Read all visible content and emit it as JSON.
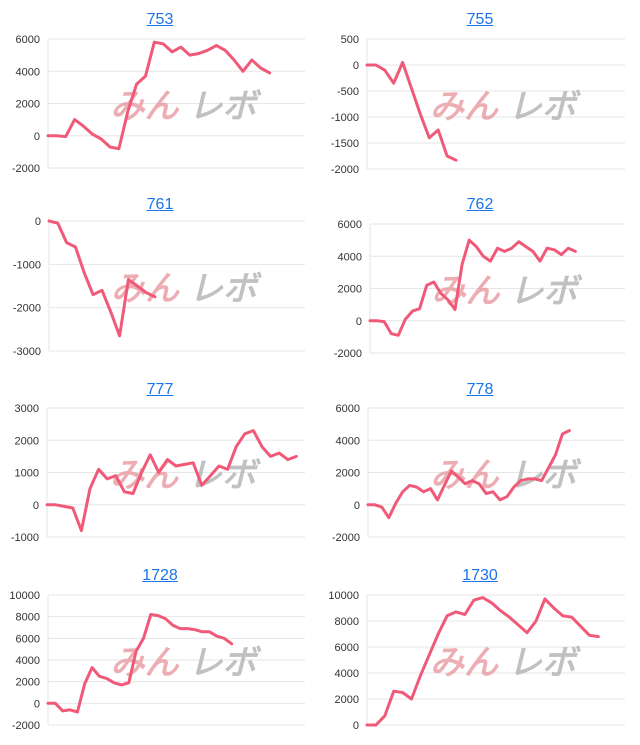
{
  "page": {
    "background": "#ffffff"
  },
  "colors": {
    "line": "#f05a78",
    "grid": "#e6e6e6",
    "link": "#1a73e8",
    "wm_a": "#e89aa0",
    "wm_b": "#b7b7b7"
  },
  "watermark": {
    "text_a": "みん",
    "text_b": "レボ"
  },
  "chart_data": [
    {
      "type": "line",
      "title": "753",
      "ylim": [
        -2000,
        6000
      ],
      "yticks": [
        -2000,
        0,
        2000,
        4000,
        6000
      ],
      "xcount": 30,
      "series": [
        {
          "values": [
            0,
            0,
            -50,
            1000,
            600,
            100,
            -200,
            -700,
            -800,
            1500,
            3200,
            3700,
            5800,
            5700,
            5200,
            5500,
            5000,
            5100,
            5300,
            5600,
            5300,
            4700,
            4000,
            4700,
            4200,
            3900
          ]
        }
      ]
    },
    {
      "type": "line",
      "title": "755",
      "ylim": [
        -2000,
        500
      ],
      "yticks": [
        -2000,
        -1500,
        -1000,
        -500,
        0,
        500
      ],
      "xcount": 30,
      "series": [
        {
          "values": [
            0,
            0,
            -100,
            -350,
            50,
            -450,
            -950,
            -1400,
            -1250,
            -1750,
            -1830
          ]
        }
      ]
    },
    {
      "type": "line",
      "title": "761",
      "ylim": [
        -3000,
        0
      ],
      "yticks": [
        -3000,
        -2000,
        -1000,
        0
      ],
      "xcount": 30,
      "series": [
        {
          "values": [
            0,
            -50,
            -500,
            -600,
            -1200,
            -1700,
            -1600,
            -2100,
            -2650,
            -1350,
            -1500,
            -1650,
            -1750
          ]
        }
      ]
    },
    {
      "type": "line",
      "title": "762",
      "ylim": [
        -2000,
        6000
      ],
      "yticks": [
        -2000,
        0,
        2000,
        4000,
        6000
      ],
      "xcount": 37,
      "series": [
        {
          "values": [
            0,
            0,
            -50,
            -800,
            -900,
            100,
            600,
            750,
            2200,
            2400,
            1700,
            1300,
            700,
            3500,
            5000,
            4600,
            4000,
            3700,
            4500,
            4300,
            4500,
            4900,
            4600,
            4300,
            3700,
            4500,
            4400,
            4100,
            4500,
            4300
          ]
        }
      ]
    },
    {
      "type": "line",
      "title": "777",
      "ylim": [
        -1000,
        3000
      ],
      "yticks": [
        -1000,
        0,
        1000,
        2000,
        3000
      ],
      "xcount": 31,
      "series": [
        {
          "values": [
            0,
            0,
            -50,
            -100,
            -800,
            500,
            1100,
            800,
            900,
            400,
            350,
            1000,
            1550,
            1000,
            1400,
            1200,
            1250,
            1300,
            600,
            900,
            1200,
            1100,
            1800,
            2200,
            2300,
            1800,
            1500,
            1600,
            1400,
            1500
          ]
        }
      ]
    },
    {
      "type": "line",
      "title": "778",
      "ylim": [
        -2000,
        6000
      ],
      "yticks": [
        -2000,
        0,
        2000,
        4000,
        6000
      ],
      "xcount": 38,
      "series": [
        {
          "values": [
            0,
            0,
            -150,
            -800,
            100,
            800,
            1200,
            1100,
            800,
            1000,
            300,
            1200,
            2100,
            1700,
            1300,
            1500,
            1300,
            700,
            800,
            300,
            500,
            1100,
            1500,
            1600,
            1600,
            1500,
            2300,
            3100,
            4400,
            4600
          ]
        }
      ]
    },
    {
      "type": "line",
      "title": "1728",
      "ylim": [
        -2000,
        10000
      ],
      "yticks": [
        -2000,
        0,
        2000,
        4000,
        6000,
        8000,
        10000
      ],
      "xcount": 36,
      "series": [
        {
          "values": [
            0,
            0,
            -700,
            -600,
            -800,
            1800,
            3300,
            2500,
            2300,
            1900,
            1700,
            1900,
            4800,
            6000,
            8200,
            8100,
            7800,
            7200,
            6900,
            6900,
            6800,
            6600,
            6600,
            6200,
            6000,
            5500
          ]
        }
      ]
    },
    {
      "type": "line",
      "title": "1730",
      "ylim": [
        0,
        10000
      ],
      "yticks": [
        0,
        2000,
        4000,
        6000,
        8000,
        10000
      ],
      "xcount": 30,
      "series": [
        {
          "values": [
            0,
            0,
            700,
            2600,
            2500,
            2000,
            3800,
            5400,
            7000,
            8400,
            8700,
            8500,
            9600,
            9800,
            9400,
            8800,
            8300,
            7700,
            7100,
            8000,
            9700,
            9000,
            8400,
            8300,
            7600,
            6900,
            6800
          ]
        }
      ]
    }
  ]
}
